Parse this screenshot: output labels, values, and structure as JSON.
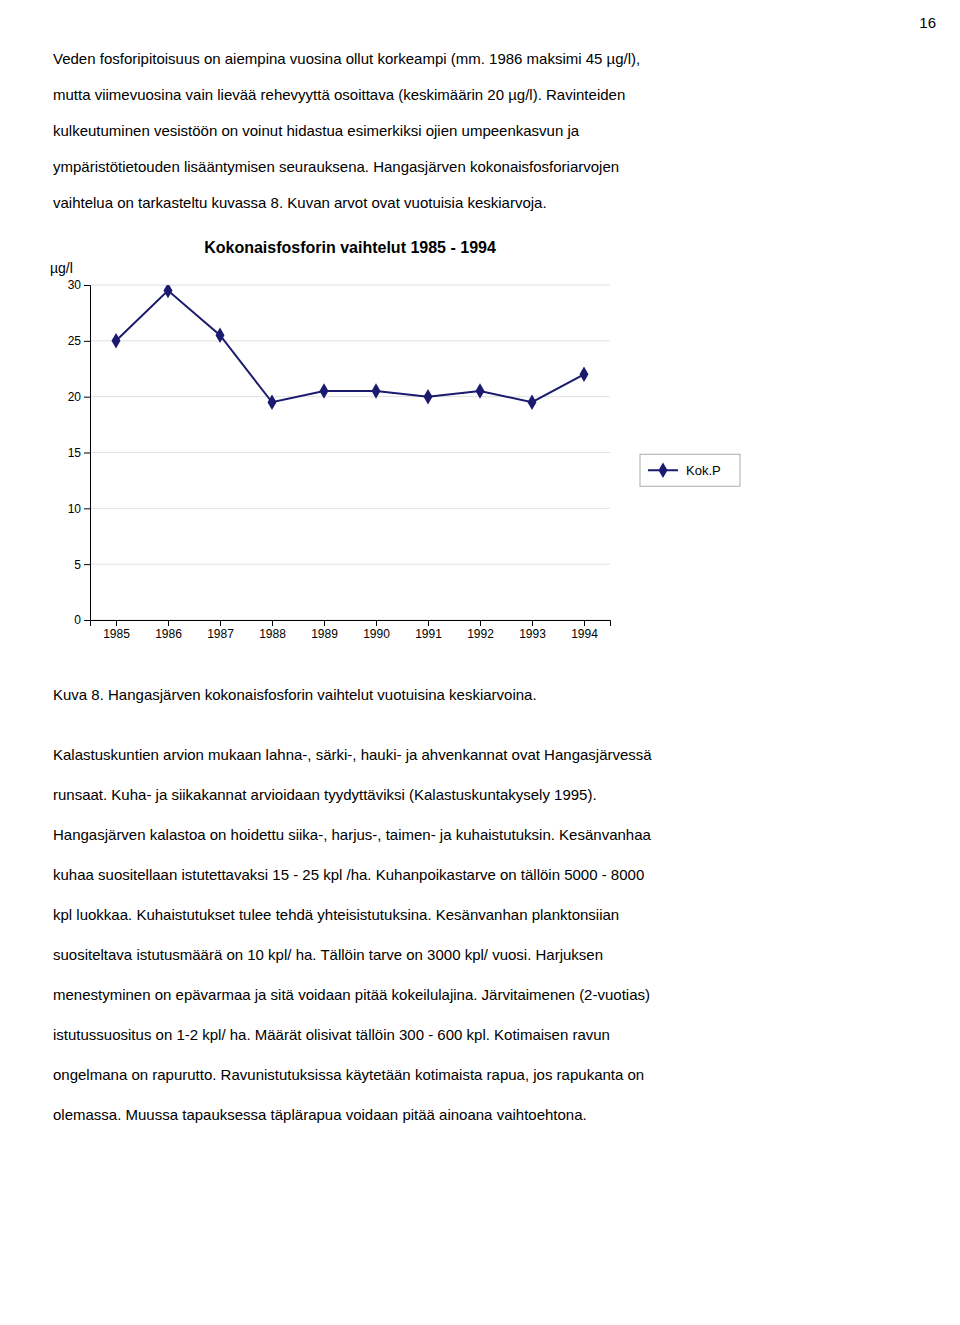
{
  "page_number": "16",
  "top_text": [
    "Veden fosforipitoisuus on aiempina vuosina ollut korkeampi (mm. 1986 maksimi 45 µg/l),",
    "mutta viimevuosina vain lievää rehevyyttä osoittava (keskimäärin 20 µg/l). Ravinteiden",
    "kulkeutuminen vesistöön on voinut hidastua esimerkiksi ojien umpeenkasvun ja",
    "ympäristötietouden lisääntymisen seurauksena. Hangasjärven kokonaisfosforiarvojen",
    "vaihtelua on tarkasteltu kuvassa 8. Kuvan arvot ovat vuotuisia keskiarvoja."
  ],
  "chart_data": {
    "type": "line",
    "title": "Kokonaisfosforin vaihtelut 1985 - 1994",
    "ylabel": "µg/l",
    "x": [
      1985,
      1986,
      1987,
      1988,
      1989,
      1990,
      1991,
      1992,
      1993,
      1994
    ],
    "series": [
      {
        "name": "Kok.P",
        "color": "#1a1a6e",
        "marker": "diamond",
        "values": [
          25,
          29.5,
          25.5,
          19.5,
          20.5,
          20.5,
          20.0,
          20.5,
          19.5,
          22.0
        ]
      }
    ],
    "xlim": [
      1984.5,
      1994.5
    ],
    "xticks": [
      1985,
      1986,
      1987,
      1988,
      1989,
      1990,
      1991,
      1992,
      1993,
      1994
    ],
    "ylim": [
      0,
      30
    ],
    "yticks": [
      0,
      5,
      10,
      15,
      20,
      25,
      30
    ],
    "grid": true,
    "legend": "right"
  },
  "caption": "Kuva 8. Hangasjärven kokonaisfosforin vaihtelut vuotuisina keskiarvoina.",
  "bottom_text": [
    " Kalastuskuntien arvion mukaan lahna-, särki-, hauki- ja ahvenkannat ovat Hangasjärvessä",
    "runsaat. Kuha- ja siikakannat arvioidaan tyydyttäviksi (Kalastuskuntakysely 1995).",
    "Hangasjärven kalastoa on hoidettu siika-, harjus-, taimen-  ja kuhaistutuksin. Kesänvanhaa",
    "kuhaa suositellaan istutettavaksi  15 - 25 kpl /ha. Kuhanpoikastarve on tällöin 5000 - 8000",
    "kpl luokkaa. Kuhaistutukset tulee tehdä yhteisistutuksina. Kesänvanhan planktonsiian",
    "suositeltava istutusmäärä on 10 kpl/ ha. Tällöin tarve on 3000  kpl/ vuosi. Harjuksen",
    "menestyminen on epävarmaa ja sitä voidaan pitää kokeilulajina. Järvitaimenen (2-vuotias)",
    "istutussuositus on 1-2 kpl/ ha. Määrät olisivat tällöin 300 - 600 kpl. Kotimaisen ravun",
    "ongelmana on rapurutto. Ravunistutuksissa käytetään kotimaista rapua, jos rapukanta on",
    "olemassa. Muussa tapauksessa täplärapua voidaan pitää ainoana vaihtoehtona."
  ]
}
